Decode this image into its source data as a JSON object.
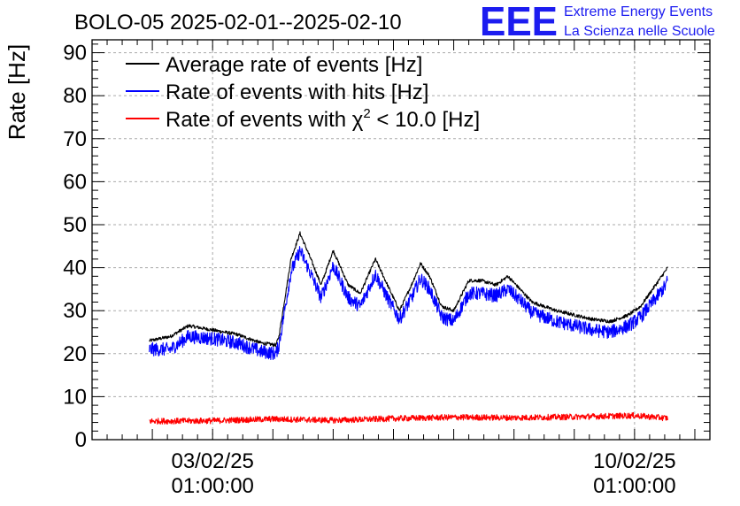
{
  "chart_data": {
    "type": "line",
    "title": "BOLO-05 2025-02-01--2025-02-10",
    "ylabel": "Rate [Hz]",
    "xlabel": "",
    "ylim": [
      0,
      93
    ],
    "xlim_days": [
      0,
      10.25
    ],
    "yticks": [
      0,
      10,
      20,
      30,
      40,
      50,
      60,
      70,
      80,
      90
    ],
    "xticks": [
      {
        "day": 2.0,
        "line1": "03/02/25",
        "line2": "01:00:00"
      },
      {
        "day": 9.0,
        "line1": "10/02/25",
        "line2": "01:00:00"
      }
    ],
    "legend_position": "top-left",
    "grid": true,
    "logo": {
      "mark": "EEE",
      "line1": "Extreme Energy Events",
      "line2": "La Scienza nelle Scuole"
    },
    "series": [
      {
        "name": "Average rate of events [Hz]",
        "legend_main": "Average rate of events [Hz]",
        "legend_sup": "",
        "legend_tail": "",
        "color": "#000000",
        "noise": 0.4,
        "x": [
          0.95,
          1.3,
          1.6,
          2.0,
          2.4,
          2.8,
          3.05,
          3.1,
          3.3,
          3.45,
          3.6,
          3.8,
          4.0,
          4.25,
          4.45,
          4.7,
          4.9,
          5.1,
          5.3,
          5.45,
          5.6,
          5.8,
          6.0,
          6.25,
          6.45,
          6.7,
          6.9,
          7.1,
          7.3,
          7.5,
          7.7,
          8.0,
          8.3,
          8.6,
          8.9,
          9.1,
          9.3,
          9.5,
          9.55
        ],
        "y": [
          23,
          24,
          26.5,
          25.5,
          24.5,
          22.5,
          22,
          24,
          42,
          48,
          43,
          36,
          44,
          36,
          34,
          42,
          36,
          30,
          36,
          41,
          38,
          31,
          30,
          37,
          37,
          36,
          38,
          35,
          32,
          31,
          30,
          29,
          28,
          27.5,
          29,
          31,
          35,
          39,
          40
        ]
      },
      {
        "name": "Rate of events with hits [Hz]",
        "legend_main": "Rate of events with hits [Hz]",
        "legend_sup": "",
        "legend_tail": "",
        "color": "#0000ff",
        "noise": 1.6,
        "x": [
          0.95,
          1.3,
          1.6,
          2.0,
          2.4,
          2.8,
          3.05,
          3.1,
          3.3,
          3.45,
          3.6,
          3.8,
          4.0,
          4.25,
          4.45,
          4.7,
          4.9,
          5.1,
          5.3,
          5.45,
          5.6,
          5.8,
          6.0,
          6.25,
          6.45,
          6.7,
          6.9,
          7.1,
          7.3,
          7.5,
          7.7,
          8.0,
          8.3,
          8.6,
          8.9,
          9.1,
          9.3,
          9.5,
          9.55
        ],
        "y": [
          21,
          21,
          24,
          23.5,
          22.5,
          20.5,
          20,
          22,
          39,
          44,
          39.5,
          33,
          40.5,
          33,
          31,
          38.5,
          33,
          28,
          33,
          37.5,
          35,
          28.5,
          27.5,
          34,
          34,
          33.5,
          35,
          32.5,
          29.5,
          28.5,
          27.5,
          26.5,
          25.5,
          25,
          26.5,
          28.5,
          32,
          35.5,
          37
        ]
      },
      {
        "name": "Rate of events with χ2 < 10.0 [Hz]",
        "legend_main": "Rate of events with χ",
        "legend_sup": "2",
        "legend_tail": " < 10.0 [Hz]",
        "color": "#ff0000",
        "noise": 0.7,
        "x": [
          0.95,
          2.0,
          3.0,
          4.0,
          5.0,
          6.0,
          7.0,
          8.0,
          9.0,
          9.55
        ],
        "y": [
          4.3,
          4.4,
          4.8,
          4.5,
          4.9,
          5.2,
          5.1,
          5.3,
          5.6,
          5.0
        ]
      }
    ]
  }
}
